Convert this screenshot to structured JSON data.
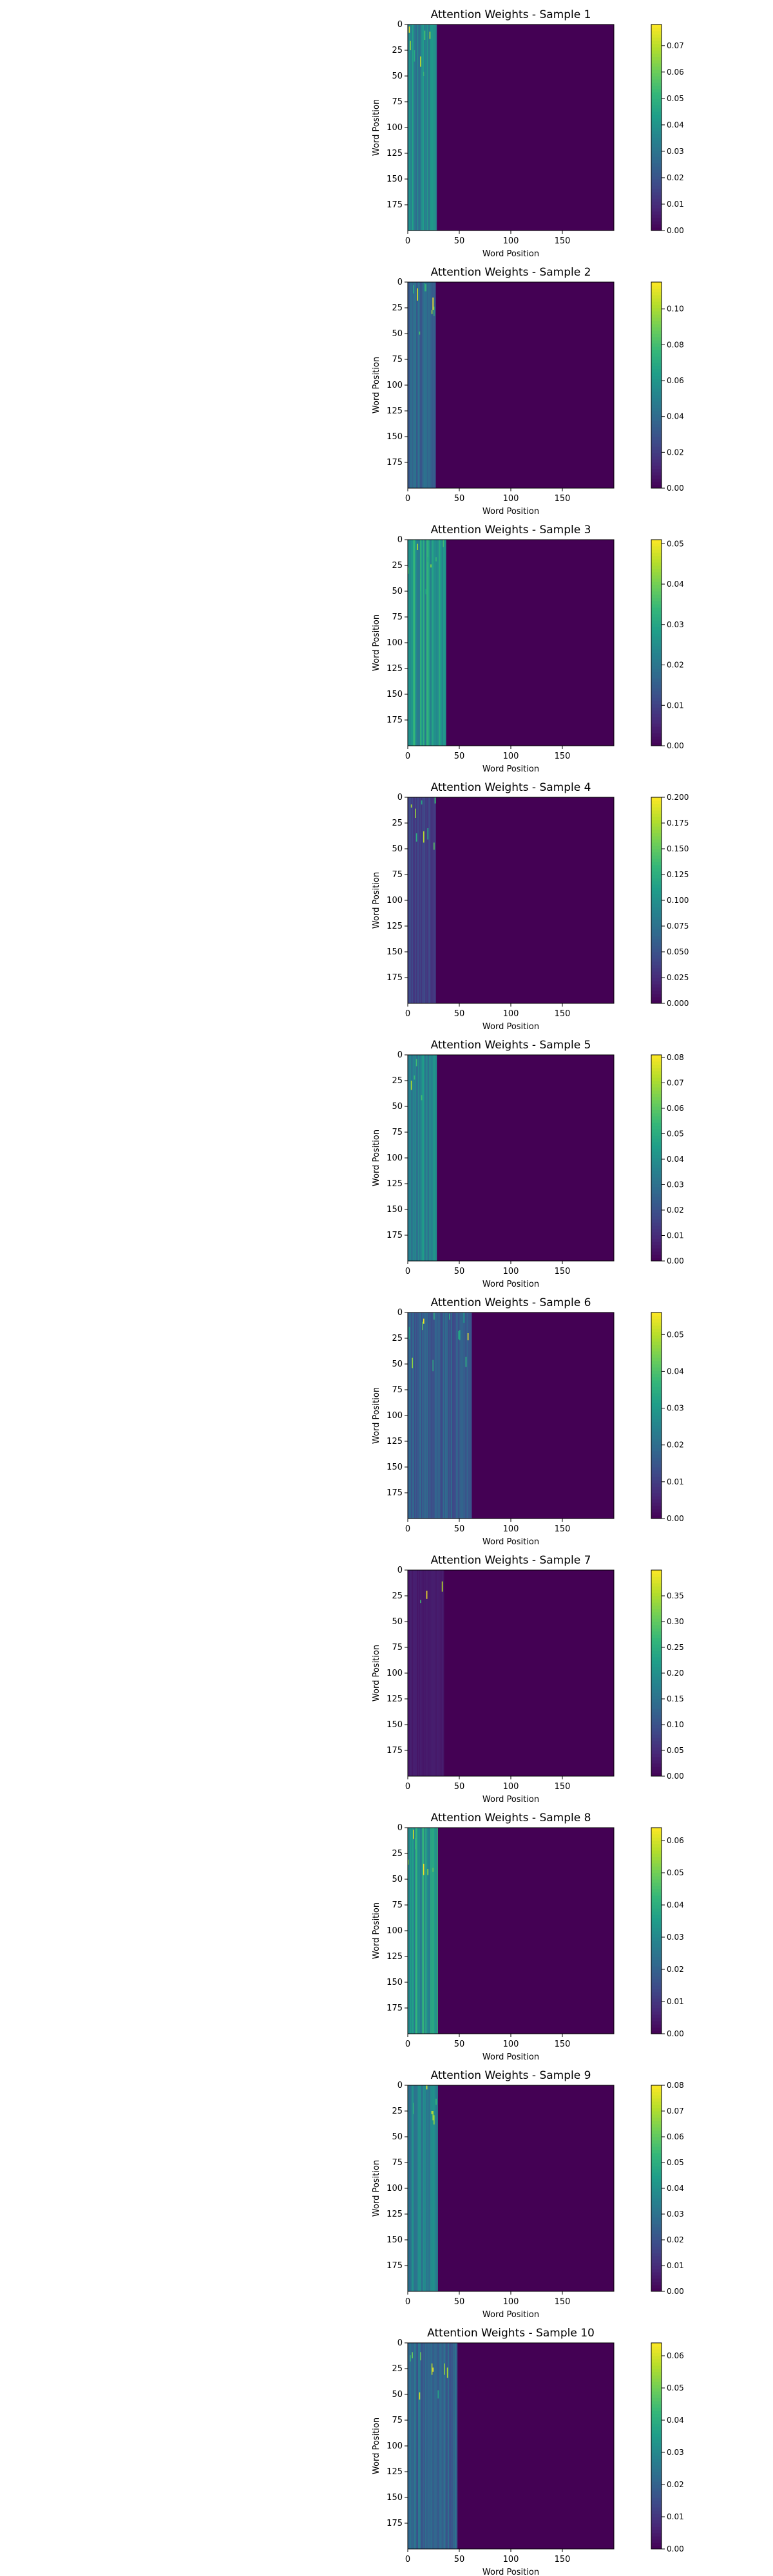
{
  "chart_data": [
    {
      "type": "heatmap",
      "title": "Attention Weights - Sample 1",
      "xlabel": "Word Position",
      "ylabel": "Word Position",
      "x_range": [
        0,
        200
      ],
      "y_range": [
        0,
        200
      ],
      "x_ticks": [
        0,
        50,
        100,
        150
      ],
      "y_ticks": [
        0,
        25,
        50,
        75,
        100,
        125,
        150,
        175
      ],
      "active_columns": 28,
      "colorbar": {
        "min": 0.0,
        "max": 0.078,
        "ticks": [
          0.0,
          0.01,
          0.02,
          0.03,
          0.04,
          0.05,
          0.06,
          0.07
        ],
        "tick_labels": [
          "0.00",
          "0.01",
          "0.02",
          "0.03",
          "0.04",
          "0.05",
          "0.06",
          "0.07"
        ]
      },
      "typical_value": 0.036
    },
    {
      "type": "heatmap",
      "title": "Attention Weights - Sample 2",
      "xlabel": "Word Position",
      "ylabel": "Word Position",
      "x_range": [
        0,
        200
      ],
      "y_range": [
        0,
        200
      ],
      "x_ticks": [
        0,
        50,
        100,
        150
      ],
      "y_ticks": [
        0,
        25,
        50,
        75,
        100,
        125,
        150,
        175
      ],
      "active_columns": 27,
      "colorbar": {
        "min": 0.0,
        "max": 0.115,
        "ticks": [
          0.0,
          0.02,
          0.04,
          0.06,
          0.08,
          0.1
        ],
        "tick_labels": [
          "0.00",
          "0.02",
          "0.04",
          "0.06",
          "0.08",
          "0.10"
        ]
      },
      "typical_value": 0.037
    },
    {
      "type": "heatmap",
      "title": "Attention Weights - Sample 3",
      "xlabel": "Word Position",
      "ylabel": "Word Position",
      "x_range": [
        0,
        200
      ],
      "y_range": [
        0,
        200
      ],
      "x_ticks": [
        0,
        50,
        100,
        150
      ],
      "y_ticks": [
        0,
        25,
        50,
        75,
        100,
        125,
        150,
        175
      ],
      "active_columns": 37,
      "colorbar": {
        "min": 0.0,
        "max": 0.051,
        "ticks": [
          0.0,
          0.01,
          0.02,
          0.03,
          0.04,
          0.05
        ],
        "tick_labels": [
          "0.00",
          "0.01",
          "0.02",
          "0.03",
          "0.04",
          "0.05"
        ]
      },
      "typical_value": 0.027
    },
    {
      "type": "heatmap",
      "title": "Attention Weights - Sample 4",
      "xlabel": "Word Position",
      "ylabel": "Word Position",
      "x_range": [
        0,
        200
      ],
      "y_range": [
        0,
        200
      ],
      "x_ticks": [
        0,
        50,
        100,
        150
      ],
      "y_ticks": [
        0,
        25,
        50,
        75,
        100,
        125,
        150,
        175
      ],
      "active_columns": 27,
      "colorbar": {
        "min": 0.0,
        "max": 0.2,
        "ticks": [
          0.0,
          0.025,
          0.05,
          0.075,
          0.1,
          0.125,
          0.15,
          0.175,
          0.2
        ],
        "tick_labels": [
          "0.000",
          "0.025",
          "0.050",
          "0.075",
          "0.100",
          "0.125",
          "0.150",
          "0.175",
          "0.200"
        ]
      },
      "typical_value": 0.037
    },
    {
      "type": "heatmap",
      "title": "Attention Weights - Sample 5",
      "xlabel": "Word Position",
      "ylabel": "Word Position",
      "x_range": [
        0,
        200
      ],
      "y_range": [
        0,
        200
      ],
      "x_ticks": [
        0,
        50,
        100,
        150
      ],
      "y_ticks": [
        0,
        25,
        50,
        75,
        100,
        125,
        150,
        175
      ],
      "active_columns": 28,
      "colorbar": {
        "min": 0.0,
        "max": 0.081,
        "ticks": [
          0.0,
          0.01,
          0.02,
          0.03,
          0.04,
          0.05,
          0.06,
          0.07,
          0.08
        ],
        "tick_labels": [
          "0.00",
          "0.01",
          "0.02",
          "0.03",
          "0.04",
          "0.05",
          "0.06",
          "0.07",
          "0.08"
        ]
      },
      "typical_value": 0.036
    },
    {
      "type": "heatmap",
      "title": "Attention Weights - Sample 6",
      "xlabel": "Word Position",
      "ylabel": "Word Position",
      "x_range": [
        0,
        200
      ],
      "y_range": [
        0,
        200
      ],
      "x_ticks": [
        0,
        50,
        100,
        150
      ],
      "y_ticks": [
        0,
        25,
        50,
        75,
        100,
        125,
        150,
        175
      ],
      "active_columns": 62,
      "colorbar": {
        "min": 0.0,
        "max": 0.056,
        "ticks": [
          0.0,
          0.01,
          0.02,
          0.03,
          0.04,
          0.05
        ],
        "tick_labels": [
          "0.00",
          "0.01",
          "0.02",
          "0.03",
          "0.04",
          "0.05"
        ]
      },
      "typical_value": 0.016
    },
    {
      "type": "heatmap",
      "title": "Attention Weights - Sample 7",
      "xlabel": "Word Position",
      "ylabel": "Word Position",
      "x_range": [
        0,
        200
      ],
      "y_range": [
        0,
        200
      ],
      "x_ticks": [
        0,
        50,
        100,
        150
      ],
      "y_ticks": [
        0,
        25,
        50,
        75,
        100,
        125,
        150,
        175
      ],
      "active_columns": 35,
      "colorbar": {
        "min": 0.0,
        "max": 0.4,
        "ticks": [
          0.0,
          0.05,
          0.1,
          0.15,
          0.2,
          0.25,
          0.3,
          0.35
        ],
        "tick_labels": [
          "0.00",
          "0.05",
          "0.10",
          "0.15",
          "0.20",
          "0.25",
          "0.30",
          "0.35"
        ]
      },
      "typical_value": 0.029
    },
    {
      "type": "heatmap",
      "title": "Attention Weights - Sample 8",
      "xlabel": "Word Position",
      "ylabel": "Word Position",
      "x_range": [
        0,
        200
      ],
      "y_range": [
        0,
        200
      ],
      "x_ticks": [
        0,
        50,
        100,
        150
      ],
      "y_ticks": [
        0,
        25,
        50,
        75,
        100,
        125,
        150,
        175
      ],
      "active_columns": 29,
      "colorbar": {
        "min": 0.0,
        "max": 0.064,
        "ticks": [
          0.0,
          0.01,
          0.02,
          0.03,
          0.04,
          0.05,
          0.06
        ],
        "tick_labels": [
          "0.00",
          "0.01",
          "0.02",
          "0.03",
          "0.04",
          "0.05",
          "0.06"
        ]
      },
      "typical_value": 0.034
    },
    {
      "type": "heatmap",
      "title": "Attention Weights - Sample 9",
      "xlabel": "Word Position",
      "ylabel": "Word Position",
      "x_range": [
        0,
        200
      ],
      "y_range": [
        0,
        200
      ],
      "x_ticks": [
        0,
        50,
        100,
        150
      ],
      "y_ticks": [
        0,
        25,
        50,
        75,
        100,
        125,
        150,
        175
      ],
      "active_columns": 29,
      "colorbar": {
        "min": 0.0,
        "max": 0.08,
        "ticks": [
          0.0,
          0.01,
          0.02,
          0.03,
          0.04,
          0.05,
          0.06,
          0.07,
          0.08
        ],
        "tick_labels": [
          "0.00",
          "0.01",
          "0.02",
          "0.03",
          "0.04",
          "0.05",
          "0.06",
          "0.07",
          "0.08"
        ]
      },
      "typical_value": 0.034
    },
    {
      "type": "heatmap",
      "title": "Attention Weights - Sample 10",
      "xlabel": "Word Position",
      "ylabel": "Word Position",
      "x_range": [
        0,
        200
      ],
      "y_range": [
        0,
        200
      ],
      "x_ticks": [
        0,
        50,
        100,
        150
      ],
      "y_ticks": [
        0,
        25,
        50,
        75,
        100,
        125,
        150,
        175
      ],
      "active_columns": 48,
      "colorbar": {
        "min": 0.0,
        "max": 0.064,
        "ticks": [
          0.0,
          0.01,
          0.02,
          0.03,
          0.04,
          0.05,
          0.06
        ],
        "tick_labels": [
          "0.00",
          "0.01",
          "0.02",
          "0.03",
          "0.04",
          "0.05",
          "0.06"
        ]
      },
      "typical_value": 0.021
    }
  ],
  "colormap": {
    "name": "viridis",
    "stops": [
      "#440154",
      "#482878",
      "#3e4a89",
      "#31688e",
      "#26828e",
      "#1f9e89",
      "#35b779",
      "#6ece58",
      "#b5de2b",
      "#fde725"
    ]
  }
}
